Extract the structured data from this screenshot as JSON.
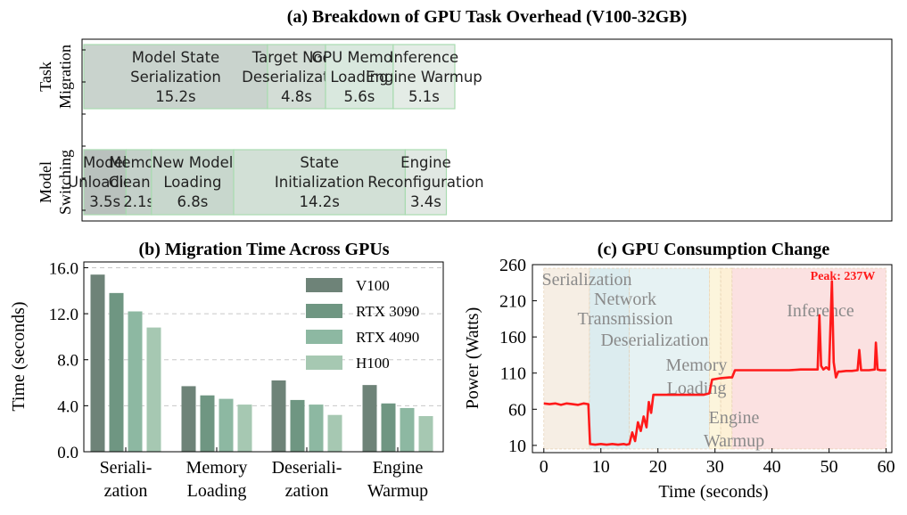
{
  "chart_data": [
    {
      "type": "bar",
      "subtype": "horizontal-stacked-timeline",
      "title": "(a) Breakdown of GPU Task Overhead (V100-32GB)",
      "rows": [
        {
          "label_lines": [
            "Task",
            "Migration"
          ],
          "segments": [
            {
              "lines": [
                "Model State",
                "Serialization"
              ],
              "value_label": "15.2s",
              "value": 15.2,
              "color": "#c9d3cd"
            },
            {
              "lines": [
                "Target Node",
                "Deserialization"
              ],
              "value_label": "4.8s",
              "value": 4.8,
              "color": "#d3ddd6"
            },
            {
              "lines": [
                "GPU Memory",
                "Loading"
              ],
              "value_label": "5.6s",
              "value": 5.6,
              "color": "#d9e8de"
            },
            {
              "lines": [
                "Inference",
                "Engine Warmup"
              ],
              "value_label": "5.1s",
              "value": 5.1,
              "color": "#e4ece6"
            }
          ]
        },
        {
          "label_lines": [
            "Model",
            "Switching"
          ],
          "segments": [
            {
              "lines": [
                "Model",
                "Unloading"
              ],
              "value_label": "3.5s",
              "value": 3.5,
              "color": "#b9c1bd"
            },
            {
              "lines": [
                "Memory",
                "Cleanup"
              ],
              "value_label": "2.1s",
              "value": 2.1,
              "color": "#c4d0c9"
            },
            {
              "lines": [
                "New Model",
                "Loading"
              ],
              "value_label": "6.8s",
              "value": 6.8,
              "color": "#c8d7cd"
            },
            {
              "lines": [
                "State",
                "Initialization"
              ],
              "value_label": "14.2s",
              "value": 14.2,
              "color": "#d2e0d6"
            },
            {
              "lines": [
                "Engine",
                "Reconfiguration"
              ],
              "value_label": "3.4s",
              "value": 3.4,
              "color": "#e1e8e3"
            }
          ]
        }
      ]
    },
    {
      "type": "bar",
      "title": "(b) Migration Time Across GPUs",
      "ylabel": "Time (seconds)",
      "ylim": [
        0,
        16.5
      ],
      "yticks": [
        "0.0",
        "4.0",
        "8.0",
        "12.0",
        "16.0"
      ],
      "grid": "y-dashed",
      "legend_position": "top-right",
      "categories": [
        [
          "Seriali-",
          "zation"
        ],
        [
          "Memory",
          "Loading"
        ],
        [
          "Deseriali-",
          "zation"
        ],
        [
          "Engine",
          "Warmup"
        ]
      ],
      "series": [
        {
          "name": "V100",
          "color": "#6e8378",
          "values": [
            15.4,
            5.7,
            6.2,
            5.8
          ]
        },
        {
          "name": "RTX 3090",
          "color": "#6f9682",
          "values": [
            13.8,
            4.9,
            4.5,
            4.2
          ]
        },
        {
          "name": "RTX 4090",
          "color": "#8db8a2",
          "values": [
            12.2,
            4.6,
            4.1,
            3.8
          ]
        },
        {
          "name": "H100",
          "color": "#a6c8b2",
          "values": [
            10.8,
            4.1,
            3.2,
            3.1
          ]
        }
      ]
    },
    {
      "type": "line",
      "title": "(c) GPU Consumption Change",
      "xlabel": "Time (seconds)",
      "ylabel": "Power (Watts)",
      "xlim": [
        -2,
        61
      ],
      "ylim": [
        0,
        260
      ],
      "xticks": [
        "0",
        "10",
        "20",
        "30",
        "40",
        "50",
        "60"
      ],
      "yticks": [
        "10",
        "60",
        "110",
        "160",
        "210",
        "260"
      ],
      "line_color": "#ff1a1a",
      "peak_label": "Peak: 237W",
      "phases": [
        {
          "lines": [
            "Serialization"
          ],
          "x0": 0,
          "x1": 8,
          "color": "#f6eee4"
        },
        {
          "lines": [
            "Network",
            "Transmission"
          ],
          "x0": 8,
          "x1": 15,
          "color": "#dcecef"
        },
        {
          "lines": [
            "Deserialization"
          ],
          "x0": 15,
          "x1": 29,
          "color": "#e6f2f3"
        },
        {
          "lines": [
            "Memory",
            "Loading"
          ],
          "x0": 29,
          "x1": 31,
          "color": "#fcf5dc"
        },
        {
          "lines": [
            "Engine",
            "Warmup"
          ],
          "x0": 31,
          "x1": 33,
          "color": "#fdf0d6"
        },
        {
          "lines": [
            "Inference"
          ],
          "x0": 33,
          "x1": 60,
          "color": "#fbe1e1"
        }
      ],
      "x": [
        0,
        1,
        2,
        3,
        4,
        5,
        6,
        7,
        7.8,
        8.1,
        9,
        10,
        11,
        12,
        13,
        14,
        14.5,
        15,
        15.5,
        16,
        16.5,
        17,
        17.5,
        18,
        18.4,
        18.8,
        19.2,
        20,
        22,
        24,
        26,
        28,
        29,
        29.5,
        31,
        32.5,
        33,
        33.5,
        35,
        38,
        40,
        43,
        45,
        47,
        48,
        48.3,
        48.6,
        49,
        49.5,
        50,
        50.5,
        50.8,
        51.2,
        51.6,
        52,
        53,
        54,
        55,
        55.3,
        55.6,
        56,
        57,
        58,
        58.2,
        58.5,
        59,
        60
      ],
      "y": [
        68,
        67,
        68,
        66,
        68,
        67,
        66,
        68,
        67,
        12,
        11,
        12,
        11,
        12,
        11,
        12,
        11,
        12,
        28,
        16,
        42,
        30,
        50,
        35,
        70,
        55,
        80,
        80,
        80,
        80,
        80,
        80,
        82,
        101,
        103,
        104,
        104,
        114,
        114,
        114,
        114,
        114,
        115,
        115,
        115,
        190,
        120,
        115,
        118,
        115,
        237,
        125,
        104,
        112,
        112,
        113,
        113,
        114,
        142,
        114,
        114,
        114,
        115,
        152,
        115,
        114,
        114
      ]
    }
  ]
}
